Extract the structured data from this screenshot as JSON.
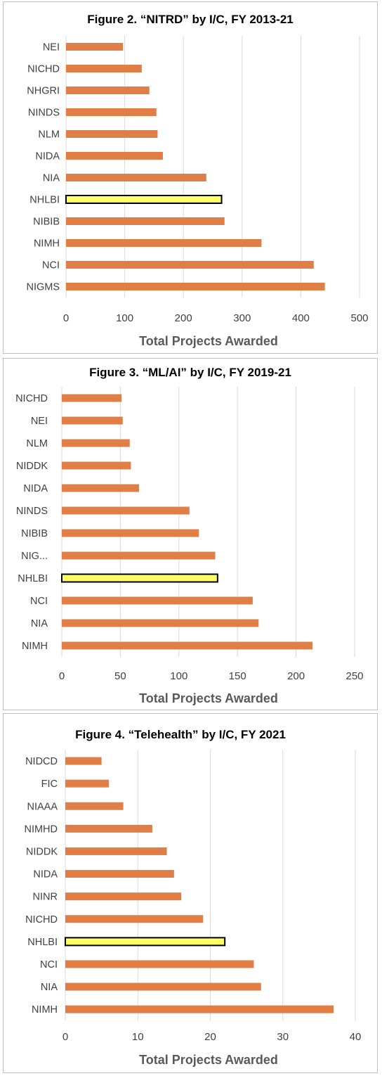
{
  "colors": {
    "bar": "#E07E45",
    "highlight": "#FFFF66",
    "grid": "#D9D9D9",
    "text": "#404040",
    "axis_title": "#595959"
  },
  "chart_data": [
    {
      "type": "bar",
      "orientation": "horizontal",
      "title": "Figure 2. “NITRD” by I/C, FY 2013-21",
      "xlabel": "Total Projects Awarded",
      "ylabel": "",
      "categories": [
        "NEI",
        "NICHD",
        "NHGRI",
        "NINDS",
        "NLM",
        "NIDA",
        "NIA",
        "NHLBI",
        "NIBIB",
        "NIMH",
        "NCI",
        "NIGMS"
      ],
      "values": [
        97,
        129,
        142,
        154,
        156,
        165,
        239,
        265,
        270,
        333,
        422,
        441
      ],
      "highlight": "NHLBI",
      "xlim": [
        0,
        500
      ],
      "xticks": [
        "0",
        "100",
        "200",
        "300",
        "400",
        "500"
      ],
      "grid": "vertical"
    },
    {
      "type": "bar",
      "orientation": "horizontal",
      "title": "Figure 3. “ML/AI” by I/C, FY 2019-21",
      "xlabel": "Total Projects Awarded",
      "ylabel": "",
      "categories": [
        "NICHD",
        "NEI",
        "NLM",
        "NIDDK",
        "NIDA",
        "NINDS",
        "NIBIB",
        "NIG...",
        "NHLBI",
        "NCI",
        "NIA",
        "NIMH"
      ],
      "values": [
        51,
        52,
        58,
        59,
        66,
        109,
        117,
        131,
        133,
        163,
        168,
        214
      ],
      "highlight": "NHLBI",
      "xlim": [
        0,
        250
      ],
      "xticks": [
        "0",
        "50",
        "100",
        "150",
        "200",
        "250"
      ],
      "grid": "vertical"
    },
    {
      "type": "bar",
      "orientation": "horizontal",
      "title": "Figure 4. “Telehealth” by I/C, FY 2021",
      "xlabel": "Total Projects Awarded",
      "ylabel": "",
      "categories": [
        "NIDCD",
        "FIC",
        "NIAAA",
        "NIMHD",
        "NIDDK",
        "NIDA",
        "NINR",
        "NICHD",
        "NHLBI",
        "NCI",
        "NIA",
        "NIMH"
      ],
      "values": [
        5,
        6,
        8,
        12,
        14,
        15,
        16,
        19,
        22,
        26,
        27,
        37
      ],
      "highlight": "NHLBI",
      "xlim": [
        0,
        40
      ],
      "xticks": [
        "0",
        "10",
        "20",
        "30",
        "40"
      ],
      "grid": "vertical"
    }
  ]
}
